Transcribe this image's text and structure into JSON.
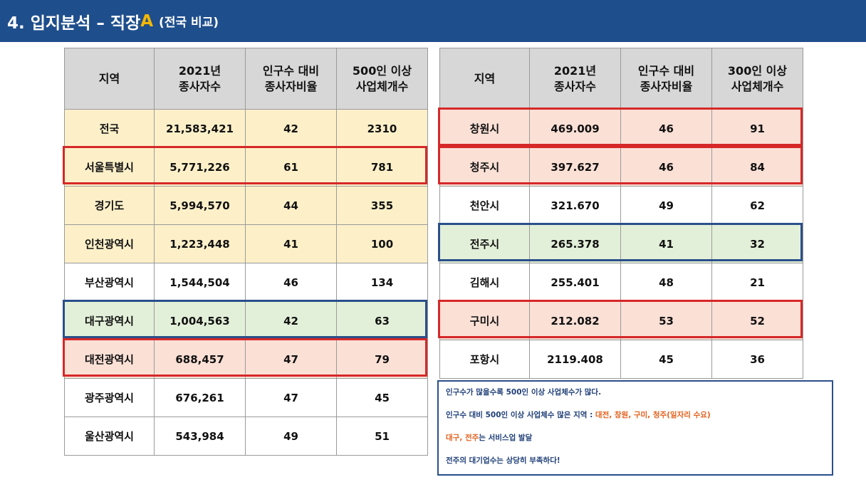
{
  "title": {
    "main": "4. 입지분석 – 직장",
    "accent": "A",
    "sub": "(전국 비교)"
  },
  "left_table": {
    "headers": [
      "지역",
      "2021년\n종사자수",
      "인구수 대비\n종사자비율",
      "500인 이상\n사업체개수"
    ],
    "rows": [
      [
        "전국",
        "21,583,421",
        "42",
        "2310"
      ],
      [
        "서울특별시",
        "5,771,226",
        "61",
        "781"
      ],
      [
        "경기도",
        "5,994,570",
        "44",
        "355"
      ],
      [
        "인천광역시",
        "1,223,448",
        "41",
        "100"
      ],
      [
        "부산광역시",
        "1,544,504",
        "46",
        "134"
      ],
      [
        "대구광역시",
        "1,004,563",
        "42",
        "63"
      ],
      [
        "대전광역시",
        "688,457",
        "47",
        "79"
      ],
      [
        "광주광역시",
        "676,261",
        "47",
        "45"
      ],
      [
        "울산광역시",
        "543,984",
        "49",
        "51"
      ]
    ]
  },
  "right_table": {
    "headers": [
      "지역",
      "2021년\n종사자수",
      "인구수 대비\n종사자비율",
      "300인 이상\n사업체개수"
    ],
    "rows": [
      [
        "창원시",
        "469.009",
        "46",
        "91"
      ],
      [
        "청주시",
        "397.627",
        "46",
        "84"
      ],
      [
        "천안시",
        "321.670",
        "49",
        "62"
      ],
      [
        "전주시",
        "265.378",
        "41",
        "32"
      ],
      [
        "김해시",
        "255.401",
        "48",
        "21"
      ],
      [
        "구미시",
        "212.082",
        "53",
        "52"
      ],
      [
        "포항시",
        "2119.408",
        "45",
        "36"
      ]
    ]
  },
  "colors": {
    "title_bg": "#1f4e8c",
    "accent": "#f5b700",
    "highlight_yellow": "#fdf0c9",
    "highlight_green": "#e3f0d9",
    "highlight_red": "#fbe0d6",
    "box_red": "#d62828",
    "box_blue": "#2a4f8a",
    "note_orange": "#e4601b"
  },
  "notes": {
    "line1": "인구수가 많을수록 500인 이상 사업체수가 많다.",
    "line2_prefix": "인구수 대비 500인 이상 사업체수 많은 지역 : ",
    "line2_highlight": "대전, 창원, 구미, 청주(일자리 수요)",
    "line3_highlight": "대구, 전주",
    "line3_suffix": "는 서비스업 발달",
    "line4": "전주의 대기업수는 상당히 부족하다!"
  }
}
